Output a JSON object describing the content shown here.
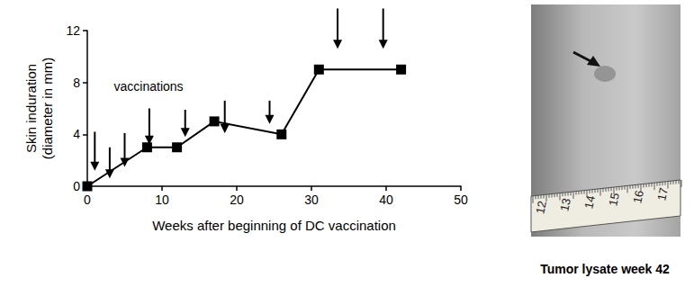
{
  "chart_data": {
    "type": "line",
    "x_label": "Weeks after beginning of DC vaccination",
    "y_label": "Skin induration\n(diameter in mm)",
    "x": [
      0,
      8,
      12,
      17,
      26,
      31,
      42
    ],
    "values": [
      0,
      3,
      3,
      5,
      4,
      9,
      9
    ],
    "color": "#000000",
    "marker": "square",
    "xlim": [
      0,
      50
    ],
    "xticks": [
      0,
      10,
      20,
      30,
      40,
      50
    ],
    "ylim": [
      0,
      12
    ],
    "yticks": [
      0,
      4,
      8,
      12
    ],
    "grid": false,
    "annotations": [
      {
        "text": "vaccinations",
        "x": 8.2,
        "y": 7.7
      }
    ],
    "vaccination_arrows": [
      {
        "x": 1,
        "y_from": 4.2,
        "y_to": 1.2
      },
      {
        "x": 3,
        "y_from": 3.0,
        "y_to": 0.6
      },
      {
        "x": 5,
        "y_from": 4.1,
        "y_to": 1.5
      },
      {
        "x": 8.3,
        "y_from": 6.0,
        "y_to": 3.2
      },
      {
        "x": 13.1,
        "y_from": 5.9,
        "y_to": 3.8
      },
      {
        "x": 18.4,
        "y_from": 6.6,
        "y_to": 4.1
      },
      {
        "x": 24.4,
        "y_from": 6.6,
        "y_to": 4.8
      },
      {
        "x": 33.5,
        "y_from": 13.7,
        "y_to": 10.6
      },
      {
        "x": 39.6,
        "y_from": 13.7,
        "y_to": 10.6
      }
    ]
  },
  "photo": {
    "caption": "Tumor lysate week 42",
    "tape_labels": [
      "12",
      "13",
      "14",
      "15",
      "16",
      "17"
    ]
  }
}
